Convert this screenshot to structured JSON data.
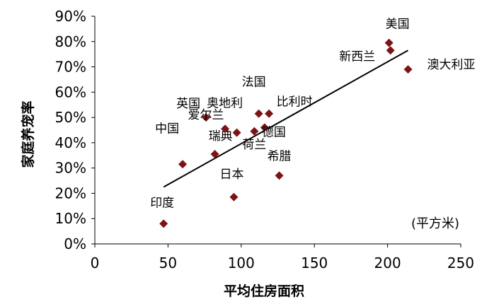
{
  "chart_data": {
    "type": "scatter",
    "xlabel": "平均住房面积",
    "ylabel": "家庭养宠率",
    "xlim": [
      0,
      250
    ],
    "ylim": [
      0,
      90
    ],
    "x_ticks": [
      "0",
      "50",
      "100",
      "150",
      "200",
      "250"
    ],
    "y_ticks": [
      "0%",
      "10%",
      "20%",
      "30%",
      "40%",
      "50%",
      "60%",
      "70%",
      "80%",
      "90%"
    ],
    "annotation": "(平方米)",
    "marker_color": "#7B1416",
    "trendline": {
      "x": [
        47,
        214
      ],
      "y": [
        22.5,
        76.5
      ]
    },
    "points": [
      {
        "label": "印度",
        "x": 47,
        "y": 8
      },
      {
        "label": "中国",
        "x": 60,
        "y": 31.5
      },
      {
        "label": "英国",
        "x": 76,
        "y": 50
      },
      {
        "label": "瑞典",
        "x": 82,
        "y": 35.5
      },
      {
        "label": "爱尔兰",
        "x": 89,
        "y": 45.5
      },
      {
        "label": "日本",
        "x": 95,
        "y": 18.5
      },
      {
        "label": "奥地利",
        "x": 97,
        "y": 44
      },
      {
        "label": "荷兰",
        "x": 109,
        "y": 44.5
      },
      {
        "label": "法国",
        "x": 112,
        "y": 51.5
      },
      {
        "label": "德国",
        "x": 116,
        "y": 46
      },
      {
        "label": "比利时",
        "x": 119,
        "y": 51.5
      },
      {
        "label": "希腊",
        "x": 126,
        "y": 27
      },
      {
        "label": "美国",
        "x": 201,
        "y": 79.5
      },
      {
        "label": "新西兰",
        "x": 202,
        "y": 76.5
      },
      {
        "label": "澳大利亚",
        "x": 214,
        "y": 69
      }
    ]
  }
}
